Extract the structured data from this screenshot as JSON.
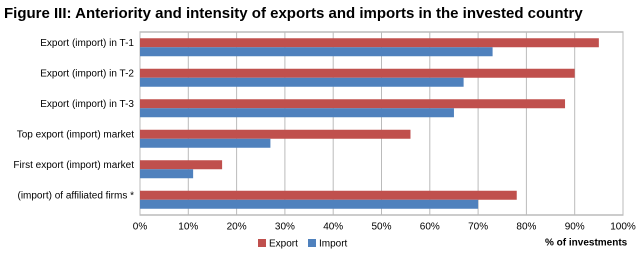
{
  "chart_data": {
    "type": "hbar",
    "title": "Figure III: Anteriority and intensity of exports and imports in the invested country",
    "categories": [
      "Export (import) in T-1",
      "Export (import) in T-2",
      "Export (import) in T-3",
      "Top export (import) market",
      "First export (import) market",
      "(import) of affiliated firms *"
    ],
    "series": [
      {
        "name": "Export",
        "color": "#c0504d",
        "values": [
          95,
          90,
          88,
          56,
          17,
          78
        ]
      },
      {
        "name": "Import",
        "color": "#4f81bd",
        "values": [
          73,
          67,
          65,
          27,
          11,
          70
        ]
      }
    ],
    "xlabel": "% of investments",
    "xlim": [
      0,
      100
    ],
    "xticks": [
      {
        "value": 0,
        "label": "0%"
      },
      {
        "value": 10,
        "label": "10%"
      },
      {
        "value": 20,
        "label": "20%"
      },
      {
        "value": 30,
        "label": "30%"
      },
      {
        "value": 40,
        "label": "40%"
      },
      {
        "value": 50,
        "label": "50%"
      },
      {
        "value": 60,
        "label": "60%"
      },
      {
        "value": 70,
        "label": "70%"
      },
      {
        "value": 80,
        "label": "80%"
      },
      {
        "value": 90,
        "label": "90%"
      },
      {
        "value": 100,
        "label": "100%"
      }
    ],
    "grid": true,
    "legend": "bottom"
  }
}
